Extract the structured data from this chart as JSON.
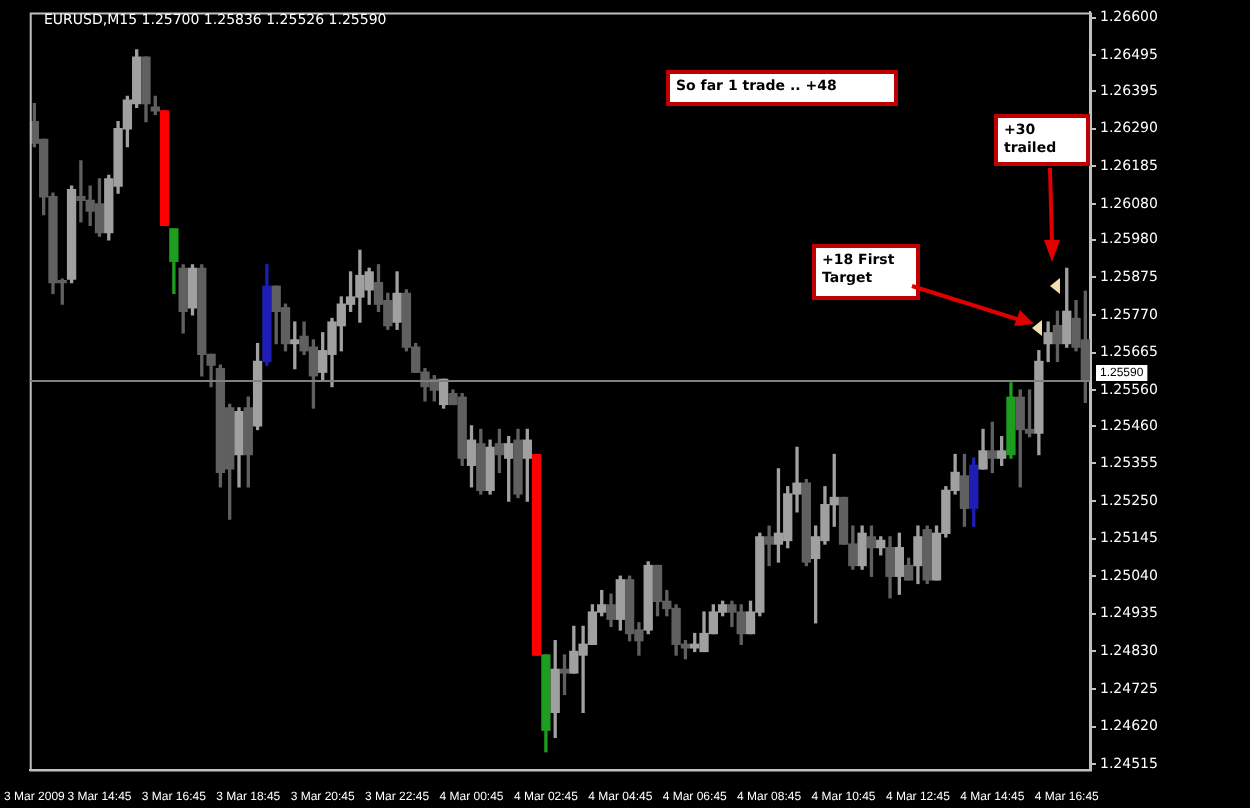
{
  "chart_data": {
    "type": "candlestick",
    "categories": [
      "3 Mar 2009",
      null,
      null,
      null,
      null,
      null,
      null,
      "3 Mar 14:45",
      null,
      null,
      null,
      null,
      null,
      null,
      null,
      "3 Mar 16:45",
      null,
      null,
      null,
      null,
      null,
      null,
      null,
      "3 Mar 18:45",
      null,
      null,
      null,
      null,
      null,
      null,
      null,
      "3 Mar 20:45",
      null,
      null,
      null,
      null,
      null,
      null,
      null,
      "3 Mar 22:45",
      null,
      null,
      null,
      null,
      null,
      null,
      null,
      "4 Mar 00:45",
      null,
      null,
      null,
      null,
      null,
      null,
      null,
      "4 Mar 02:45",
      null,
      null,
      null,
      null,
      null,
      null,
      null,
      "4 Mar 04:45",
      null,
      null,
      null,
      null,
      null,
      null,
      null,
      "4 Mar 06:45",
      null,
      null,
      null,
      null,
      null,
      null,
      null,
      "4 Mar 08:45",
      null,
      null,
      null,
      null,
      null,
      null,
      null,
      "4 Mar 10:45",
      null,
      null,
      null,
      null,
      null,
      null,
      null,
      "4 Mar 12:45",
      null,
      null,
      null,
      null,
      null,
      null,
      null,
      "4 Mar 14:45",
      null,
      null,
      null,
      null,
      null,
      null,
      null,
      "4 Mar 16:45",
      null,
      null
    ],
    "ohlc": [
      [
        1.2631,
        1.2636,
        1.2624,
        1.2625
      ],
      [
        1.2626,
        1.2626,
        1.2605,
        1.261
      ],
      [
        1.261,
        1.2611,
        1.2583,
        1.2586
      ],
      [
        1.2586,
        1.2587,
        1.258,
        1.2586
      ],
      [
        1.2587,
        1.2613,
        1.2586,
        1.2612
      ],
      [
        1.261,
        1.262,
        1.2603,
        1.2609
      ],
      [
        1.2609,
        1.2613,
        1.2602,
        1.2606
      ],
      [
        1.2608,
        1.2615,
        1.2599,
        1.26
      ],
      [
        1.26,
        1.2616,
        1.2598,
        1.2615
      ],
      [
        1.2613,
        1.2631,
        1.2611,
        1.2629
      ],
      [
        1.2629,
        1.2638,
        1.2624,
        1.2637
      ],
      [
        1.2636,
        1.2651,
        1.2635,
        1.2649
      ],
      [
        1.2649,
        1.2649,
        1.2631,
        1.2636
      ],
      [
        1.2635,
        1.2638,
        1.2633,
        1.2634
      ],
      [
        1.2634,
        1.2634,
        1.2602,
        1.2602
      ],
      [
        1.2592,
        1.2601,
        1.2583,
        1.2601
      ],
      [
        1.259,
        1.2591,
        1.2572,
        1.2578
      ],
      [
        1.2579,
        1.2591,
        1.2577,
        1.259
      ],
      [
        1.259,
        1.2591,
        1.256,
        1.2566
      ],
      [
        1.2566,
        1.2566,
        1.2557,
        1.2563
      ],
      [
        1.2562,
        1.2563,
        1.2529,
        1.2533
      ],
      [
        1.2551,
        1.2552,
        1.252,
        1.2534
      ],
      [
        1.2538,
        1.2551,
        1.2529,
        1.255
      ],
      [
        1.2551,
        1.2554,
        1.2529,
        1.2538
      ],
      [
        1.2546,
        1.2569,
        1.2545,
        1.2564
      ],
      [
        1.2564,
        1.2591,
        1.2563,
        1.2585
      ],
      [
        1.2585,
        1.2585,
        1.2569,
        1.2578
      ],
      [
        1.2579,
        1.258,
        1.2567,
        1.2569
      ],
      [
        1.2569,
        1.2575,
        1.2562,
        1.257
      ],
      [
        1.2571,
        1.2575,
        1.2566,
        1.2567
      ],
      [
        1.2568,
        1.257,
        1.2551,
        1.256
      ],
      [
        1.2561,
        1.2572,
        1.2559,
        1.2567
      ],
      [
        1.2566,
        1.2576,
        1.2557,
        1.2575
      ],
      [
        1.2574,
        1.2582,
        1.2567,
        1.258
      ],
      [
        1.258,
        1.2589,
        1.2578,
        1.2582
      ],
      [
        1.2582,
        1.2595,
        1.2575,
        1.2588
      ],
      [
        1.2584,
        1.259,
        1.258,
        1.2589
      ],
      [
        1.2586,
        1.2591,
        1.2578,
        1.258
      ],
      [
        1.2581,
        1.2583,
        1.2573,
        1.2574
      ],
      [
        1.2575,
        1.2589,
        1.2573,
        1.2583
      ],
      [
        1.2583,
        1.2584,
        1.2567,
        1.2568
      ],
      [
        1.2568,
        1.2569,
        1.2561,
        1.2561
      ],
      [
        1.2561,
        1.2562,
        1.2553,
        1.2557
      ],
      [
        1.2559,
        1.256,
        1.2553,
        1.2556
      ],
      [
        1.2552,
        1.2559,
        1.2551,
        1.2559
      ],
      [
        1.2555,
        1.2556,
        1.2552,
        1.2552
      ],
      [
        1.2554,
        1.2555,
        1.2535,
        1.2537
      ],
      [
        1.2535,
        1.2546,
        1.2529,
        1.2542
      ],
      [
        1.2541,
        1.2545,
        1.2527,
        1.2528
      ],
      [
        1.2528,
        1.2542,
        1.2527,
        1.254
      ],
      [
        1.2541,
        1.2545,
        1.2533,
        1.2538
      ],
      [
        1.2537,
        1.2543,
        1.2525,
        1.2541
      ],
      [
        1.2542,
        1.2545,
        1.2526,
        1.2527
      ],
      [
        1.2537,
        1.2545,
        1.2525,
        1.2542
      ],
      [
        1.2538,
        1.2538,
        1.2482,
        1.2482
      ],
      [
        1.2461,
        1.2482,
        1.2455,
        1.2482
      ],
      [
        1.2466,
        1.2486,
        1.2459,
        1.2478
      ],
      [
        1.2478,
        1.2482,
        1.2471,
        1.2477
      ],
      [
        1.2477,
        1.249,
        1.2477,
        1.2483
      ],
      [
        1.2482,
        1.249,
        1.2466,
        1.2485
      ],
      [
        1.2485,
        1.2496,
        1.2485,
        1.2494
      ],
      [
        1.2494,
        1.25,
        1.2493,
        1.2496
      ],
      [
        1.2496,
        1.2499,
        1.249,
        1.2492
      ],
      [
        1.2492,
        1.2504,
        1.2489,
        1.2503
      ],
      [
        1.2503,
        1.2504,
        1.2486,
        1.2488
      ],
      [
        1.2489,
        1.2491,
        1.2482,
        1.2486
      ],
      [
        1.2489,
        1.2508,
        1.2488,
        1.2507
      ],
      [
        1.2507,
        1.2507,
        1.2493,
        1.2497
      ],
      [
        1.2497,
        1.25,
        1.2493,
        1.2495
      ],
      [
        1.2495,
        1.2496,
        1.2482,
        1.2485
      ],
      [
        1.2485,
        1.2486,
        1.2481,
        1.2484
      ],
      [
        1.2484,
        1.2488,
        1.2483,
        1.2485
      ],
      [
        1.2483,
        1.2494,
        1.2483,
        1.2488
      ],
      [
        1.2488,
        1.2496,
        1.2488,
        1.2494
      ],
      [
        1.2494,
        1.2497,
        1.2493,
        1.2496
      ],
      [
        1.2496,
        1.2497,
        1.249,
        1.2494
      ],
      [
        1.2494,
        1.2496,
        1.2485,
        1.2488
      ],
      [
        1.2488,
        1.2497,
        1.2488,
        1.2494
      ],
      [
        1.2494,
        1.2516,
        1.2493,
        1.2515
      ],
      [
        1.2515,
        1.2518,
        1.2507,
        1.2513
      ],
      [
        1.2513,
        1.2534,
        1.2508,
        1.2516
      ],
      [
        1.2514,
        1.2529,
        1.2512,
        1.2527
      ],
      [
        1.2527,
        1.254,
        1.2522,
        1.253
      ],
      [
        1.253,
        1.2531,
        1.2507,
        1.2508
      ],
      [
        1.2509,
        1.2518,
        1.2491,
        1.2515
      ],
      [
        1.2514,
        1.2529,
        1.2513,
        1.2524
      ],
      [
        1.2524,
        1.2538,
        1.2518,
        1.2526
      ],
      [
        1.2526,
        1.2526,
        1.2513,
        1.2513
      ],
      [
        1.2513,
        1.2518,
        1.2506,
        1.2507
      ],
      [
        1.2507,
        1.2518,
        1.2506,
        1.2516
      ],
      [
        1.2515,
        1.2518,
        1.2504,
        1.2512
      ],
      [
        1.2512,
        1.2515,
        1.251,
        1.2514
      ],
      [
        1.2512,
        1.2515,
        1.2498,
        1.2504
      ],
      [
        1.2504,
        1.2516,
        1.2499,
        1.2512
      ],
      [
        1.2507,
        1.2509,
        1.2503,
        1.2503
      ],
      [
        1.2507,
        1.2518,
        1.2502,
        1.2515
      ],
      [
        1.2517,
        1.2518,
        1.2502,
        1.2503
      ],
      [
        1.2503,
        1.2518,
        1.2503,
        1.2516
      ],
      [
        1.2516,
        1.2529,
        1.2515,
        1.2528
      ],
      [
        1.2528,
        1.2538,
        1.2527,
        1.2533
      ],
      [
        1.2532,
        1.2538,
        1.2518,
        1.2523
      ],
      [
        1.2523,
        1.2537,
        1.2518,
        1.2535
      ],
      [
        1.2534,
        1.2545,
        1.2534,
        1.2539
      ],
      [
        1.2539,
        1.2547,
        1.2533,
        1.2537
      ],
      [
        1.2537,
        1.2543,
        1.2535,
        1.2539
      ],
      [
        1.2538,
        1.2558,
        1.2537,
        1.2554
      ],
      [
        1.2554,
        1.2556,
        1.2529,
        1.2545
      ],
      [
        1.2545,
        1.2556,
        1.2543,
        1.2544
      ],
      [
        1.2544,
        1.2567,
        1.2538,
        1.2564
      ],
      [
        1.2569,
        1.2575,
        1.2564,
        1.2572
      ],
      [
        1.2574,
        1.2578,
        1.2564,
        1.2569
      ],
      [
        1.2569,
        1.259,
        1.2568,
        1.2578
      ],
      [
        1.2576,
        1.2581,
        1.2567,
        1.2568
      ],
      [
        1.257,
        1.25836,
        1.25526,
        1.2559
      ]
    ],
    "colors": [
      "#606060",
      "#606060",
      "#606060",
      "#606060",
      "#a0a0a0",
      "#606060",
      "#606060",
      "#606060",
      "#a0a0a0",
      "#a0a0a0",
      "#a0a0a0",
      "#a0a0a0",
      "#606060",
      "#606060",
      "#ff0000",
      "#1e9e1e",
      "#606060",
      "#a0a0a0",
      "#606060",
      "#606060",
      "#606060",
      "#606060",
      "#a0a0a0",
      "#606060",
      "#a0a0a0",
      "#1e1eb4",
      "#606060",
      "#606060",
      "#a0a0a0",
      "#606060",
      "#606060",
      "#a0a0a0",
      "#a0a0a0",
      "#a0a0a0",
      "#a0a0a0",
      "#a0a0a0",
      "#a0a0a0",
      "#606060",
      "#606060",
      "#a0a0a0",
      "#606060",
      "#606060",
      "#606060",
      "#606060",
      "#a0a0a0",
      "#606060",
      "#606060",
      "#a0a0a0",
      "#606060",
      "#a0a0a0",
      "#606060",
      "#a0a0a0",
      "#606060",
      "#a0a0a0",
      "#ff0000",
      "#1e9e1e",
      "#a0a0a0",
      "#606060",
      "#a0a0a0",
      "#a0a0a0",
      "#a0a0a0",
      "#a0a0a0",
      "#606060",
      "#a0a0a0",
      "#606060",
      "#606060",
      "#a0a0a0",
      "#606060",
      "#606060",
      "#606060",
      "#606060",
      "#a0a0a0",
      "#a0a0a0",
      "#a0a0a0",
      "#a0a0a0",
      "#606060",
      "#606060",
      "#a0a0a0",
      "#a0a0a0",
      "#606060",
      "#a0a0a0",
      "#a0a0a0",
      "#a0a0a0",
      "#606060",
      "#a0a0a0",
      "#a0a0a0",
      "#a0a0a0",
      "#606060",
      "#606060",
      "#a0a0a0",
      "#606060",
      "#a0a0a0",
      "#606060",
      "#a0a0a0",
      "#606060",
      "#a0a0a0",
      "#606060",
      "#a0a0a0",
      "#a0a0a0",
      "#a0a0a0",
      "#606060",
      "#1e1eb4",
      "#a0a0a0",
      "#606060",
      "#a0a0a0",
      "#1e9e1e",
      "#606060",
      "#606060",
      "#a0a0a0",
      "#a0a0a0",
      "#606060",
      "#a0a0a0",
      "#606060",
      "#606060"
    ],
    "ylim": [
      1.245,
      1.26615
    ],
    "yticks": [
      {
        "value": 1.266,
        "label": "1.26600"
      },
      {
        "value": 1.26495,
        "label": "1.26495"
      },
      {
        "value": 1.26395,
        "label": "1.26395"
      },
      {
        "value": 1.2629,
        "label": "1.26290"
      },
      {
        "value": 1.26185,
        "label": "1.26185"
      },
      {
        "value": 1.2608,
        "label": "1.26080"
      },
      {
        "value": 1.2598,
        "label": "1.25980"
      },
      {
        "value": 1.25875,
        "label": "1.25875"
      },
      {
        "value": 1.2577,
        "label": "1.25770"
      },
      {
        "value": 1.25665,
        "label": "1.25665"
      },
      {
        "value": 1.2556,
        "label": "1.25560"
      },
      {
        "value": 1.2546,
        "label": "1.25460"
      },
      {
        "value": 1.25355,
        "label": "1.25355"
      },
      {
        "value": 1.2525,
        "label": "1.25250"
      },
      {
        "value": 1.25145,
        "label": "1.25145"
      },
      {
        "value": 1.2504,
        "label": "1.25040"
      },
      {
        "value": 1.24935,
        "label": "1.24935"
      },
      {
        "value": 1.2483,
        "label": "1.24830"
      },
      {
        "value": 1.24725,
        "label": "1.24725"
      },
      {
        "value": 1.2462,
        "label": "1.24620"
      },
      {
        "value": 1.24515,
        "label": "1.24515"
      }
    ],
    "ref_lines": [
      {
        "axis": "y",
        "value": 1.2559,
        "label": "1.25590",
        "color": "#808080"
      }
    ],
    "annotations": [
      "EURUSD,M15 1.25700 1.25836 1.25526 1.25590",
      "So far 1 trade .. +48",
      "+18 First Target",
      "+30 trailed"
    ]
  }
}
